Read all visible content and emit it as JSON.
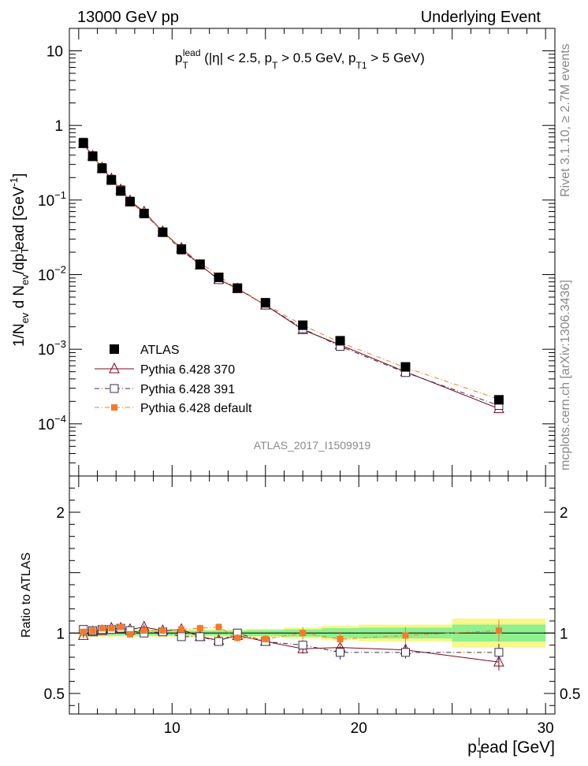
{
  "header": {
    "left": "13000 GeV pp",
    "right": "Underlying Event"
  },
  "side_labels": {
    "rivet": "Rivet 3.1.10, ≥ 2.7M events",
    "mcplots": "mcplots.cern.ch [arXiv:1306.3436]"
  },
  "colors": {
    "atlas": "#000000",
    "p370": "#7a0a1e",
    "p391": "#3a2a4a",
    "pdef": "#f47a2a",
    "band_inner": "#8ef08e",
    "band_outer": "#f7f78a"
  },
  "chart_data": {
    "type": "scatter",
    "title": "p_T^lead (|η| < 2.5, p_T > 0.5 GeV, p_T1 > 5 GeV)",
    "title_parts": {
      "p": "p",
      "T": "T",
      "lead": "lead",
      "rest1": " (|η| < 2.5, p",
      "T2": "T",
      "rest2": " > 0.5 GeV, p",
      "T3": "T1",
      "rest3": " > 5 GeV)"
    },
    "watermark": "ATLAS_2017_I1509919",
    "xlabel": "p_T^lead [GeV]",
    "xlabel_parts": {
      "p": "p",
      "T": "T",
      "l": "l",
      "rest": "ead [GeV]"
    },
    "ylabel": "1/N_ev d N_ev/dp_T^lead [GeV^-1]",
    "ylabel_parts": {
      "a": "1/N",
      "ev1": "ev",
      "b": " d N",
      "ev2": "ev",
      "c": "/dp",
      "T": "T",
      "l": "l",
      "d": "ead [GeV",
      "m1": "-1",
      "e": "]"
    },
    "ratio_ylabel": "Ratio to ATLAS",
    "xlim": [
      4.5,
      30.5
    ],
    "ylim_log": [
      2e-05,
      20
    ],
    "ratio_ylim": [
      0.33,
      2.3
    ],
    "x_ticks": [
      10,
      20,
      30
    ],
    "x_tick_labels": [
      "10",
      "20",
      "30"
    ],
    "y_ticks": [
      {
        "value": 10,
        "base": "10",
        "exp": ""
      },
      {
        "value": 1,
        "base": "1",
        "exp": ""
      },
      {
        "value": 0.1,
        "base": "10",
        "exp": "−1"
      },
      {
        "value": 0.01,
        "base": "10",
        "exp": "−2"
      },
      {
        "value": 0.001,
        "base": "10",
        "exp": "−3"
      },
      {
        "value": 0.0001,
        "base": "10",
        "exp": "−4"
      }
    ],
    "ratio_ticks": [
      0.5,
      1,
      2
    ],
    "ratio_tick_labels": [
      "0.5",
      "1",
      "2"
    ],
    "x": [
      5.25,
      5.75,
      6.25,
      6.75,
      7.25,
      7.75,
      8.5,
      9.5,
      10.5,
      11.5,
      12.5,
      13.5,
      15,
      17,
      19,
      22.5,
      27.5
    ],
    "bin_edges": [
      5,
      5.5,
      6,
      6.5,
      7,
      7.5,
      8,
      9,
      10,
      11,
      12,
      13,
      14,
      16,
      18,
      20,
      25,
      30
    ],
    "atlas_values": [
      0.58,
      0.385,
      0.265,
      0.185,
      0.132,
      0.095,
      0.066,
      0.037,
      0.022,
      0.0138,
      0.0092,
      0.0066,
      0.0042,
      0.0021,
      0.0013,
      0.00058,
      0.00021
    ],
    "band_inner_halfwidth": [
      0.02,
      0.02,
      0.02,
      0.02,
      0.02,
      0.02,
      0.02,
      0.02,
      0.02,
      0.02,
      0.02,
      0.02,
      0.025,
      0.03,
      0.04,
      0.045,
      0.07
    ],
    "band_outer_halfwidth": [
      0.03,
      0.03,
      0.03,
      0.03,
      0.03,
      0.03,
      0.03,
      0.03,
      0.03,
      0.03,
      0.03,
      0.03,
      0.035,
      0.045,
      0.06,
      0.07,
      0.12
    ],
    "series": [
      {
        "name": "ATLAS",
        "key": "atlas",
        "marker": "filled-square",
        "ratio": [
          1,
          1,
          1,
          1,
          1,
          1,
          1,
          1,
          1,
          1,
          1,
          1,
          1,
          1,
          1,
          1,
          1
        ]
      },
      {
        "name": "Pythia 6.428 370",
        "key": "p370",
        "marker": "open-triangle",
        "line": "solid",
        "ratio": [
          0.98,
          1.01,
          1.02,
          1.04,
          1.04,
          1.03,
          1.05,
          1.02,
          1.03,
          0.97,
          0.94,
          0.98,
          0.93,
          0.87,
          0.88,
          0.86,
          0.76
        ],
        "ratio_err": [
          0.02,
          0.02,
          0.02,
          0.02,
          0.02,
          0.02,
          0.02,
          0.02,
          0.02,
          0.02,
          0.03,
          0.03,
          0.03,
          0.04,
          0.05,
          0.05,
          0.07
        ]
      },
      {
        "name": "Pythia 6.428 391",
        "key": "p391",
        "marker": "open-square",
        "line": "dashdot",
        "ratio": [
          1.03,
          1.02,
          1.03,
          1.03,
          1.04,
          1.02,
          1.0,
          1.01,
          0.97,
          0.97,
          0.93,
          1.0,
          0.93,
          0.9,
          0.84,
          0.84,
          0.84
        ],
        "ratio_err": [
          0.02,
          0.02,
          0.02,
          0.02,
          0.02,
          0.02,
          0.02,
          0.02,
          0.02,
          0.02,
          0.03,
          0.03,
          0.03,
          0.04,
          0.06,
          0.05,
          0.07
        ]
      },
      {
        "name": "Pythia 6.428 default",
        "key": "pdef",
        "marker": "filled-square-small",
        "line": "dashdot",
        "ratio": [
          1.01,
          1.02,
          1.04,
          1.04,
          1.05,
          0.99,
          1.02,
          1.02,
          1.03,
          1.04,
          1.05,
          0.96,
          0.95,
          1.0,
          0.95,
          0.98,
          1.02
        ],
        "ratio_err": [
          0.02,
          0.02,
          0.02,
          0.02,
          0.02,
          0.02,
          0.02,
          0.02,
          0.02,
          0.03,
          0.03,
          0.03,
          0.03,
          0.05,
          0.06,
          0.07,
          0.09
        ]
      }
    ],
    "legend": [
      "ATLAS",
      "Pythia 6.428 370",
      "Pythia 6.428 391",
      "Pythia 6.428 default"
    ],
    "legend_position": "bottom-left"
  }
}
